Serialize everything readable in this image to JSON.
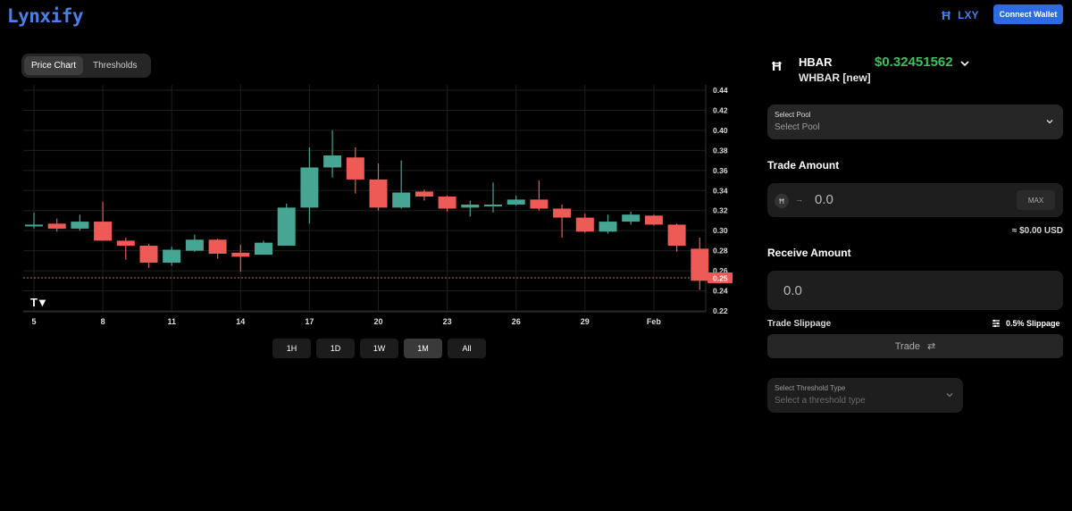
{
  "header": {
    "logo": "Lynxify",
    "token_symbol": "LXY",
    "connect_label": "Connect Wallet"
  },
  "chart_tabs": [
    {
      "label": "Price Chart",
      "active": true
    },
    {
      "label": "Thresholds",
      "active": false
    }
  ],
  "chart_data": {
    "type": "candlestick",
    "x_ticks": [
      "5",
      "8",
      "11",
      "14",
      "17",
      "20",
      "23",
      "26",
      "29",
      "Feb"
    ],
    "y_ticks": [
      "0.44",
      "0.42",
      "0.40",
      "0.38",
      "0.36",
      "0.34",
      "0.32",
      "0.30",
      "0.28",
      "0.26",
      "0.24",
      "0.22"
    ],
    "ylim": [
      0.22,
      0.44
    ],
    "current_price_label": "0.25",
    "current_price": 0.253,
    "candles": [
      {
        "o": 0.305,
        "h": 0.318,
        "l": 0.302,
        "c": 0.306
      },
      {
        "o": 0.307,
        "h": 0.312,
        "l": 0.299,
        "c": 0.302
      },
      {
        "o": 0.302,
        "h": 0.316,
        "l": 0.3,
        "c": 0.309
      },
      {
        "o": 0.309,
        "h": 0.329,
        "l": 0.29,
        "c": 0.29
      },
      {
        "o": 0.29,
        "h": 0.293,
        "l": 0.271,
        "c": 0.285
      },
      {
        "o": 0.285,
        "h": 0.287,
        "l": 0.263,
        "c": 0.268
      },
      {
        "o": 0.268,
        "h": 0.284,
        "l": 0.265,
        "c": 0.281
      },
      {
        "o": 0.28,
        "h": 0.296,
        "l": 0.279,
        "c": 0.291
      },
      {
        "o": 0.291,
        "h": 0.292,
        "l": 0.272,
        "c": 0.277
      },
      {
        "o": 0.278,
        "h": 0.286,
        "l": 0.259,
        "c": 0.274
      },
      {
        "o": 0.276,
        "h": 0.29,
        "l": 0.276,
        "c": 0.288
      },
      {
        "o": 0.285,
        "h": 0.327,
        "l": 0.285,
        "c": 0.323
      },
      {
        "o": 0.323,
        "h": 0.383,
        "l": 0.307,
        "c": 0.363
      },
      {
        "o": 0.363,
        "h": 0.4,
        "l": 0.353,
        "c": 0.375
      },
      {
        "o": 0.373,
        "h": 0.383,
        "l": 0.337,
        "c": 0.351
      },
      {
        "o": 0.351,
        "h": 0.367,
        "l": 0.32,
        "c": 0.323
      },
      {
        "o": 0.323,
        "h": 0.37,
        "l": 0.322,
        "c": 0.338
      },
      {
        "o": 0.339,
        "h": 0.341,
        "l": 0.33,
        "c": 0.334
      },
      {
        "o": 0.334,
        "h": 0.335,
        "l": 0.319,
        "c": 0.322
      },
      {
        "o": 0.323,
        "h": 0.33,
        "l": 0.314,
        "c": 0.326
      },
      {
        "o": 0.325,
        "h": 0.348,
        "l": 0.318,
        "c": 0.326
      },
      {
        "o": 0.326,
        "h": 0.335,
        "l": 0.325,
        "c": 0.331
      },
      {
        "o": 0.331,
        "h": 0.35,
        "l": 0.32,
        "c": 0.322
      },
      {
        "o": 0.322,
        "h": 0.326,
        "l": 0.293,
        "c": 0.313
      },
      {
        "o": 0.313,
        "h": 0.317,
        "l": 0.298,
        "c": 0.299
      },
      {
        "o": 0.299,
        "h": 0.316,
        "l": 0.297,
        "c": 0.309
      },
      {
        "o": 0.309,
        "h": 0.319,
        "l": 0.306,
        "c": 0.316
      },
      {
        "o": 0.315,
        "h": 0.316,
        "l": 0.305,
        "c": 0.306
      },
      {
        "o": 0.306,
        "h": 0.307,
        "l": 0.279,
        "c": 0.285
      },
      {
        "o": 0.282,
        "h": 0.293,
        "l": 0.241,
        "c": 0.25
      }
    ],
    "colors": {
      "up": "#46a593",
      "down": "#ee5a55",
      "grid": "#1f1f1f",
      "price_line": "#ee5a55"
    }
  },
  "range_buttons": [
    {
      "label": "1H",
      "active": false
    },
    {
      "label": "1D",
      "active": false
    },
    {
      "label": "1W",
      "active": false
    },
    {
      "label": "1M",
      "active": true
    },
    {
      "label": "All",
      "active": false
    }
  ],
  "token": {
    "icon": "hbar-icon",
    "name": "HBAR",
    "sub": "WHBAR [new]",
    "price": "$0.32451562"
  },
  "select_pool": {
    "label": "Select Pool",
    "placeholder": "Select Pool"
  },
  "trade_amount": {
    "title": "Trade Amount",
    "value": "0.0",
    "max_label": "MAX",
    "usd": "≈ $0.00 USD"
  },
  "receive_amount": {
    "title": "Receive Amount",
    "value": "0.0"
  },
  "slippage": {
    "label": "Trade Slippage",
    "value": "0.5% Slippage"
  },
  "trade_button": {
    "label": "Trade"
  },
  "threshold": {
    "label": "Select Threshold Type",
    "placeholder": "Select a threshold type"
  }
}
